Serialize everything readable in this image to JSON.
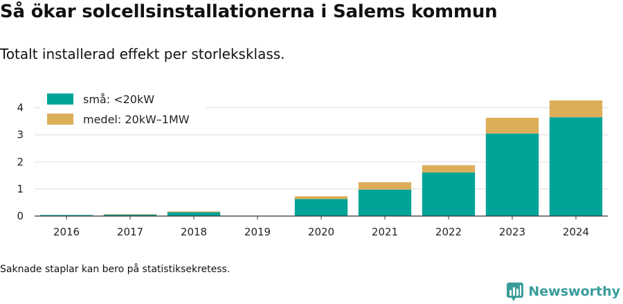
{
  "header": {
    "title": "Så ökar solcellsinstallationerna i Salems kommun",
    "subtitle": "Totalt installerad effekt per storleksklass."
  },
  "footnote": "Saknade staplar kan bero på statistiksekretess.",
  "brand": {
    "name": "Newsworthy",
    "color": "#3a9d9a",
    "icon": "bar-chart-bubble-icon"
  },
  "chart_data": {
    "type": "bar",
    "stacked": true,
    "categories": [
      "2016",
      "2017",
      "2018",
      "2019",
      "2020",
      "2021",
      "2022",
      "2023",
      "2024"
    ],
    "series": [
      {
        "name": "små: <20kW",
        "color": "#00a398",
        "values": [
          0.04,
          0.05,
          0.14,
          0,
          0.63,
          0.98,
          1.61,
          3.05,
          3.65
        ]
      },
      {
        "name": "medel: 20kW–1MW",
        "color": "#dcae5a",
        "values": [
          0.0,
          0.02,
          0.03,
          0,
          0.1,
          0.27,
          0.27,
          0.58,
          0.62
        ]
      }
    ],
    "ylim": [
      0,
      4.4
    ],
    "yticks": [
      0,
      1,
      2,
      3,
      4
    ],
    "grid": true,
    "legend_position": "top-left",
    "xlabel": "",
    "ylabel": ""
  }
}
